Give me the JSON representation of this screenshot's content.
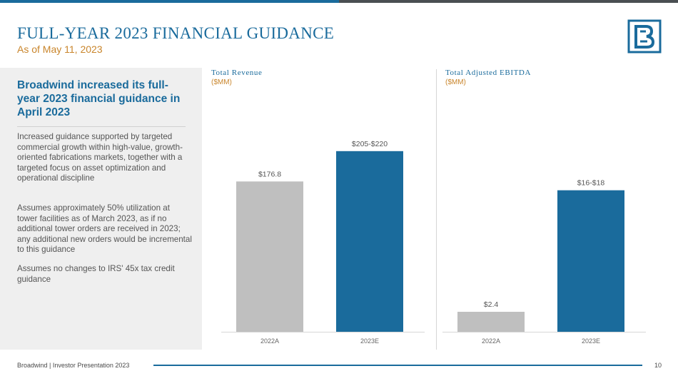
{
  "colors": {
    "accent": "#1a6b9c",
    "gold": "#c9852b",
    "gray_bar": "#bfbfbf",
    "top_bar_left": "#1a6b9c",
    "top_bar_right": "#4a4f52"
  },
  "header": {
    "title": "FULL-YEAR 2023 FINANCIAL GUIDANCE",
    "subtitle": "As of May 11, 2023",
    "logo_icon": "broadwind-logo-icon"
  },
  "side": {
    "heading": "Broadwind increased its full-year 2023 financial guidance in April 2023",
    "paragraphs": [
      "Increased guidance supported by targeted commercial growth within high-value, growth-oriented fabrications markets, together with a targeted focus on asset optimization and operational discipline",
      "Assumes approximately 50% utilization at tower facilities as of March 2023, as if no additional tower orders are received in 2023; any additional new orders would be incremental to this guidance",
      "Assumes no changes to IRS' 45x tax credit guidance"
    ]
  },
  "chart_data": [
    {
      "type": "bar",
      "title": "Total Revenue",
      "unit": "($MM)",
      "categories": [
        "2022A",
        "2023E"
      ],
      "values": [
        176.8,
        212.5
      ],
      "value_labels": [
        "$176.8",
        "$205-$220"
      ],
      "bar_colors": [
        "#bfbfbf",
        "#1a6b9c"
      ],
      "ylim": [
        0,
        235
      ],
      "grid": false
    },
    {
      "type": "bar",
      "title": "Total Adjusted EBITDA",
      "unit": "($MM)",
      "categories": [
        "2022A",
        "2023E"
      ],
      "values": [
        2.4,
        17
      ],
      "value_labels": [
        "$2.4",
        "$16-$18"
      ],
      "bar_colors": [
        "#bfbfbf",
        "#1a6b9c"
      ],
      "ylim": [
        0,
        24
      ],
      "grid": false
    }
  ],
  "footer": {
    "text": "Broadwind  |  Investor Presentation 2023",
    "page": "10"
  }
}
